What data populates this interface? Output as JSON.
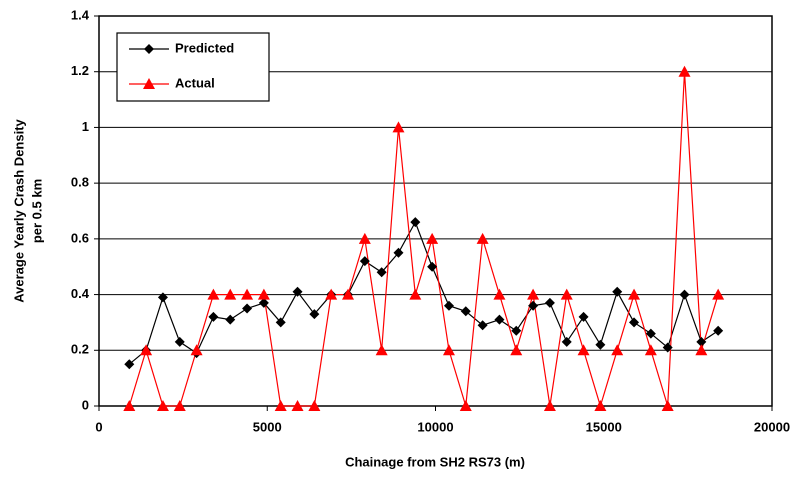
{
  "chart_data": {
    "type": "line",
    "x_label": "Chainage from SH2 RS73 (m)",
    "y_label": [
      "Average Yearly Crash Density",
      "per 0.5 km"
    ],
    "x": [
      900,
      1400,
      1900,
      2400,
      2900,
      3400,
      3900,
      4400,
      4900,
      5400,
      5900,
      6400,
      6900,
      7400,
      7900,
      8400,
      8900,
      9400,
      9900,
      10400,
      10900,
      11400,
      11900,
      12400,
      12900,
      13400,
      13900,
      14400,
      14900,
      15400,
      15900,
      16400,
      16900,
      17400,
      17900,
      18400
    ],
    "series": [
      {
        "name": "Predicted",
        "color": "#000000",
        "marker": "diamond",
        "values": [
          0.15,
          0.2,
          0.39,
          0.23,
          0.19,
          0.32,
          0.31,
          0.35,
          0.37,
          0.3,
          0.41,
          0.33,
          0.4,
          0.4,
          0.52,
          0.48,
          0.55,
          0.66,
          0.5,
          0.36,
          0.34,
          0.29,
          0.31,
          0.27,
          0.36,
          0.37,
          0.23,
          0.32,
          0.22,
          0.41,
          0.3,
          0.26,
          0.21,
          0.4,
          0.23,
          0.27
        ]
      },
      {
        "name": "Actual",
        "color": "#ff0000",
        "marker": "triangle",
        "values": [
          0,
          0.2,
          0,
          0,
          0.2,
          0.4,
          0.4,
          0.4,
          0.4,
          0,
          0,
          0,
          0.4,
          0.4,
          0.6,
          0.2,
          1,
          0.4,
          0.6,
          0.2,
          0,
          0.6,
          0.4,
          0.2,
          0.4,
          0,
          0.4,
          0.2,
          0,
          0.2,
          0.4,
          0.2,
          0,
          1.2,
          0.2,
          0.4
        ]
      }
    ],
    "xlim": [
      0,
      20000
    ],
    "xticks": [
      0,
      5000,
      10000,
      15000,
      20000
    ],
    "ylim": [
      0,
      1.4
    ],
    "yticks": [
      0,
      0.2,
      0.4,
      0.6,
      0.8,
      1,
      1.2,
      1.4
    ],
    "grid": true,
    "legend": "upper-left"
  }
}
